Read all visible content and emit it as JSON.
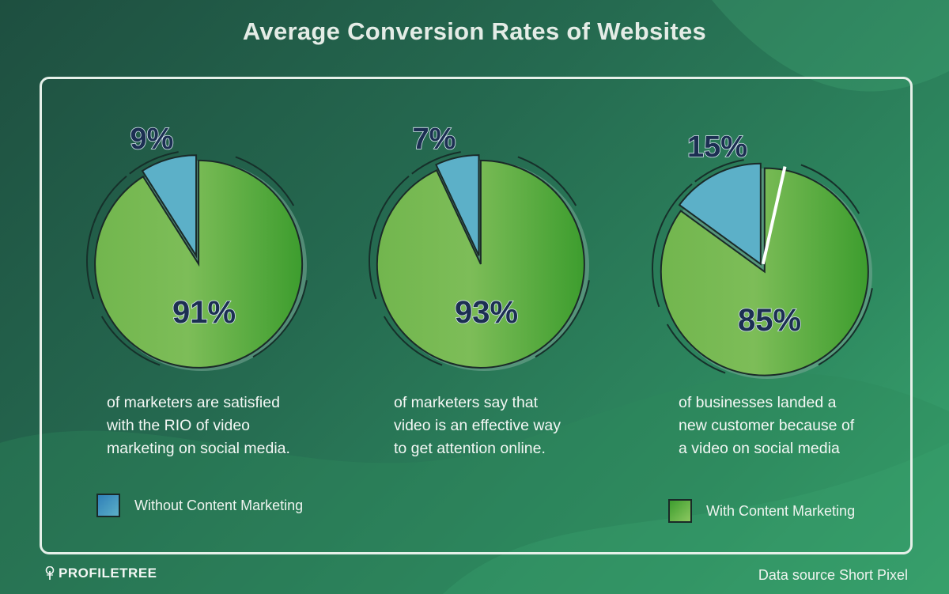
{
  "title": "Average Conversion Rates of Websites",
  "colors": {
    "without": "#5cb0c8",
    "with": "#72b64e",
    "with_dark": "#3d9d2e",
    "label_fill": "#1c2f52",
    "frame": "#e6f0e9"
  },
  "chart_data": [
    {
      "type": "pie",
      "title": "",
      "slices": [
        {
          "name": "Without Content Marketing",
          "value": 9,
          "label": "9%"
        },
        {
          "name": "With Content Marketing",
          "value": 91,
          "label": "91%"
        }
      ],
      "description": [
        "of marketers are satisfied",
        "with the RIO of video",
        "marketing on social media."
      ]
    },
    {
      "type": "pie",
      "title": "",
      "slices": [
        {
          "name": "Without Content Marketing",
          "value": 7,
          "label": "7%"
        },
        {
          "name": "With Content Marketing",
          "value": 93,
          "label": "93%"
        }
      ],
      "description": [
        "of marketers say that",
        "video is an effective way",
        "to get attention online."
      ]
    },
    {
      "type": "pie",
      "title": "",
      "slices": [
        {
          "name": "Without Content Marketing",
          "value": 15,
          "label": "15%"
        },
        {
          "name": "With Content Marketing",
          "value": 85,
          "label": "85%"
        }
      ],
      "description": [
        "of businesses landed a",
        "new customer because of",
        "a video on social media"
      ]
    }
  ],
  "legend": {
    "without": "Without Content Marketing",
    "with": "With Content Marketing",
    "placement": "bottom"
  },
  "logo": {
    "text": "PROFILETREE",
    "icon": "tree-icon"
  },
  "source": "Data source Short Pixel"
}
